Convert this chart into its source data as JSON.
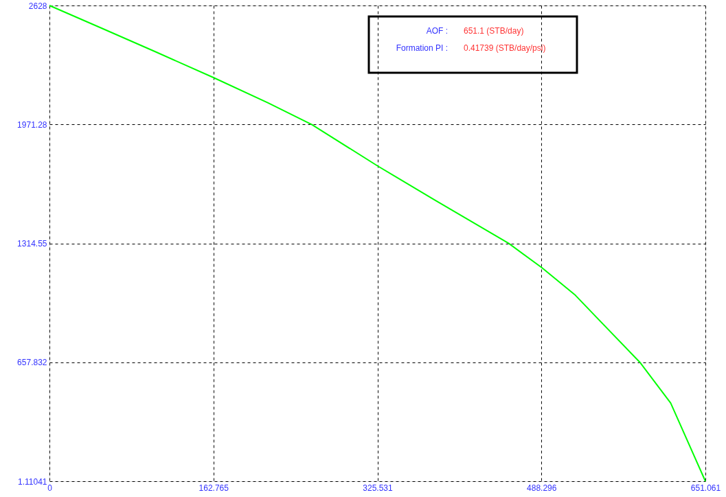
{
  "chart_data": {
    "type": "line",
    "x": [
      0,
      51.7,
      104.6,
      162.8,
      217,
      260.3,
      326,
      383,
      455.7,
      488.8,
      522,
      548,
      586,
      616.6,
      651.061
    ],
    "series": [
      {
        "color": "#00ff00",
        "values": [
          2628,
          2503,
          2374,
          2230,
          2090,
          1971,
          1741,
          1552,
          1315,
          1180,
          1028,
          877,
          658,
          433,
          1.11041
        ]
      }
    ],
    "xlim": [
      0,
      651.061
    ],
    "xticks": [
      0,
      162.765,
      325.531,
      488.296,
      651.061
    ],
    "ylim": [
      1.11041,
      2628
    ],
    "yticks": [
      1.11041,
      657.832,
      1314.55,
      1971.28,
      2628
    ],
    "grid": true,
    "marker": "none",
    "line_style": "solid",
    "annotations": [
      "AOF :",
      "651.1 (STB/day)",
      "Formation PI :",
      "0.41739 (STB/day/psi)"
    ]
  }
}
